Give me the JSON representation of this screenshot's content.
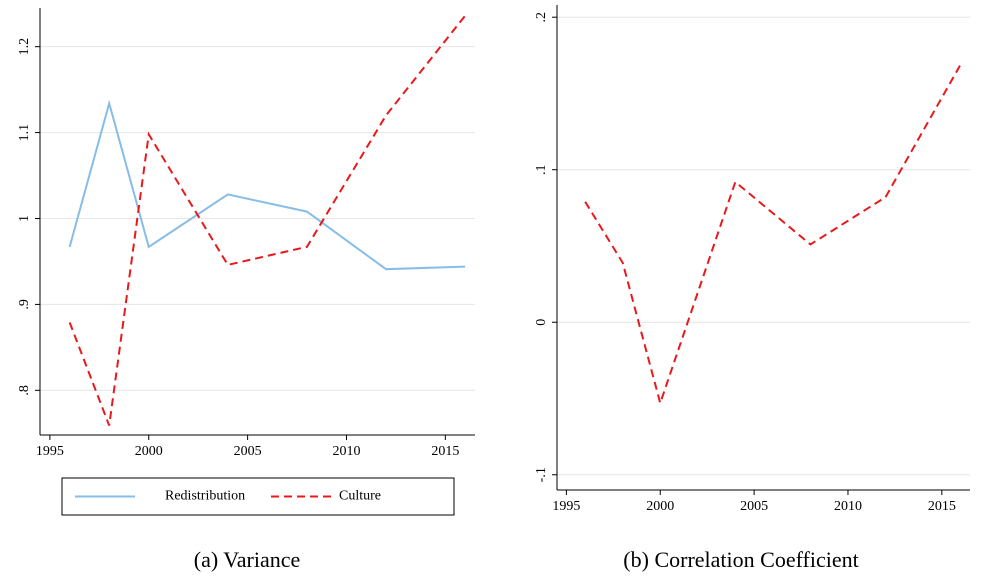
{
  "chart_data": [
    {
      "type": "line",
      "caption": "(a) Variance",
      "x": [
        1996,
        1998,
        2000,
        2004,
        2008,
        2012,
        2016
      ],
      "series": [
        {
          "name": "Redistribution",
          "color": "#87bde6",
          "style": "solid",
          "values": [
            0.967,
            1.134,
            0.967,
            1.028,
            1.008,
            0.941,
            0.944
          ]
        },
        {
          "name": "Culture",
          "color": "#e8191c",
          "style": "dashed",
          "values": [
            0.879,
            0.759,
            1.098,
            0.946,
            0.967,
            1.12,
            1.236
          ]
        }
      ],
      "xlim": [
        1994.5,
        2016.5
      ],
      "xticks": [
        1995,
        2000,
        2005,
        2010,
        2015
      ],
      "ylim": [
        0.748,
        1.245
      ],
      "yticks": [
        {
          "value": 0.8,
          "label": ".8"
        },
        {
          "value": 0.9,
          "label": ".9"
        },
        1,
        1.1,
        1.2
      ],
      "grid": true,
      "legend": "bottom"
    },
    {
      "type": "line",
      "caption": "(b) Correlation Coefficient",
      "x": [
        1996,
        1998,
        2000,
        2004,
        2008,
        2012,
        2016
      ],
      "series": [
        {
          "color": "#e8191c",
          "style": "dashed",
          "values": [
            0.079,
            0.039,
            -0.053,
            0.092,
            0.051,
            0.082,
            0.169
          ]
        }
      ],
      "xlim": [
        1994.5,
        2016.5
      ],
      "xticks": [
        1995,
        2000,
        2005,
        2010,
        2015
      ],
      "ylim": [
        -0.11,
        0.208
      ],
      "yticks": [
        {
          "value": -0.1,
          "label": "-.1"
        },
        0,
        {
          "value": 0.1,
          "label": ".1"
        },
        {
          "value": 0.2,
          "label": ".2"
        }
      ],
      "grid": true
    }
  ]
}
